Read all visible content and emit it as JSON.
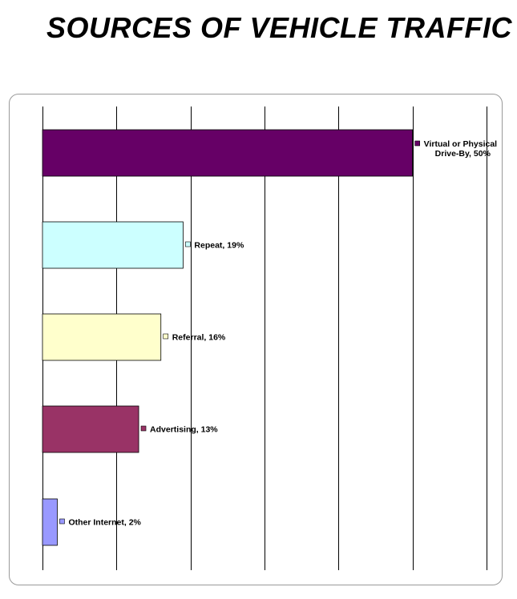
{
  "title": "SOURCES OF VEHICLE TRAFFIC",
  "chart_data": {
    "type": "bar",
    "orientation": "horizontal",
    "grid": true,
    "xlim": [
      0,
      60
    ],
    "series": [
      {
        "label_lines": [
          "Virtual or Physical",
          "Drive-By, 50%"
        ],
        "value": 50,
        "color": "#660066"
      },
      {
        "label_lines": [
          "Repeat, 19%"
        ],
        "value": 19,
        "color": "#ccffff"
      },
      {
        "label_lines": [
          "Referral, 16%"
        ],
        "value": 16,
        "color": "#ffffcc"
      },
      {
        "label_lines": [
          "Advertising, 13%"
        ],
        "value": 13,
        "color": "#993366"
      },
      {
        "label_lines": [
          "Other Internet, 2%"
        ],
        "value": 2,
        "color": "#9999ff"
      }
    ]
  }
}
